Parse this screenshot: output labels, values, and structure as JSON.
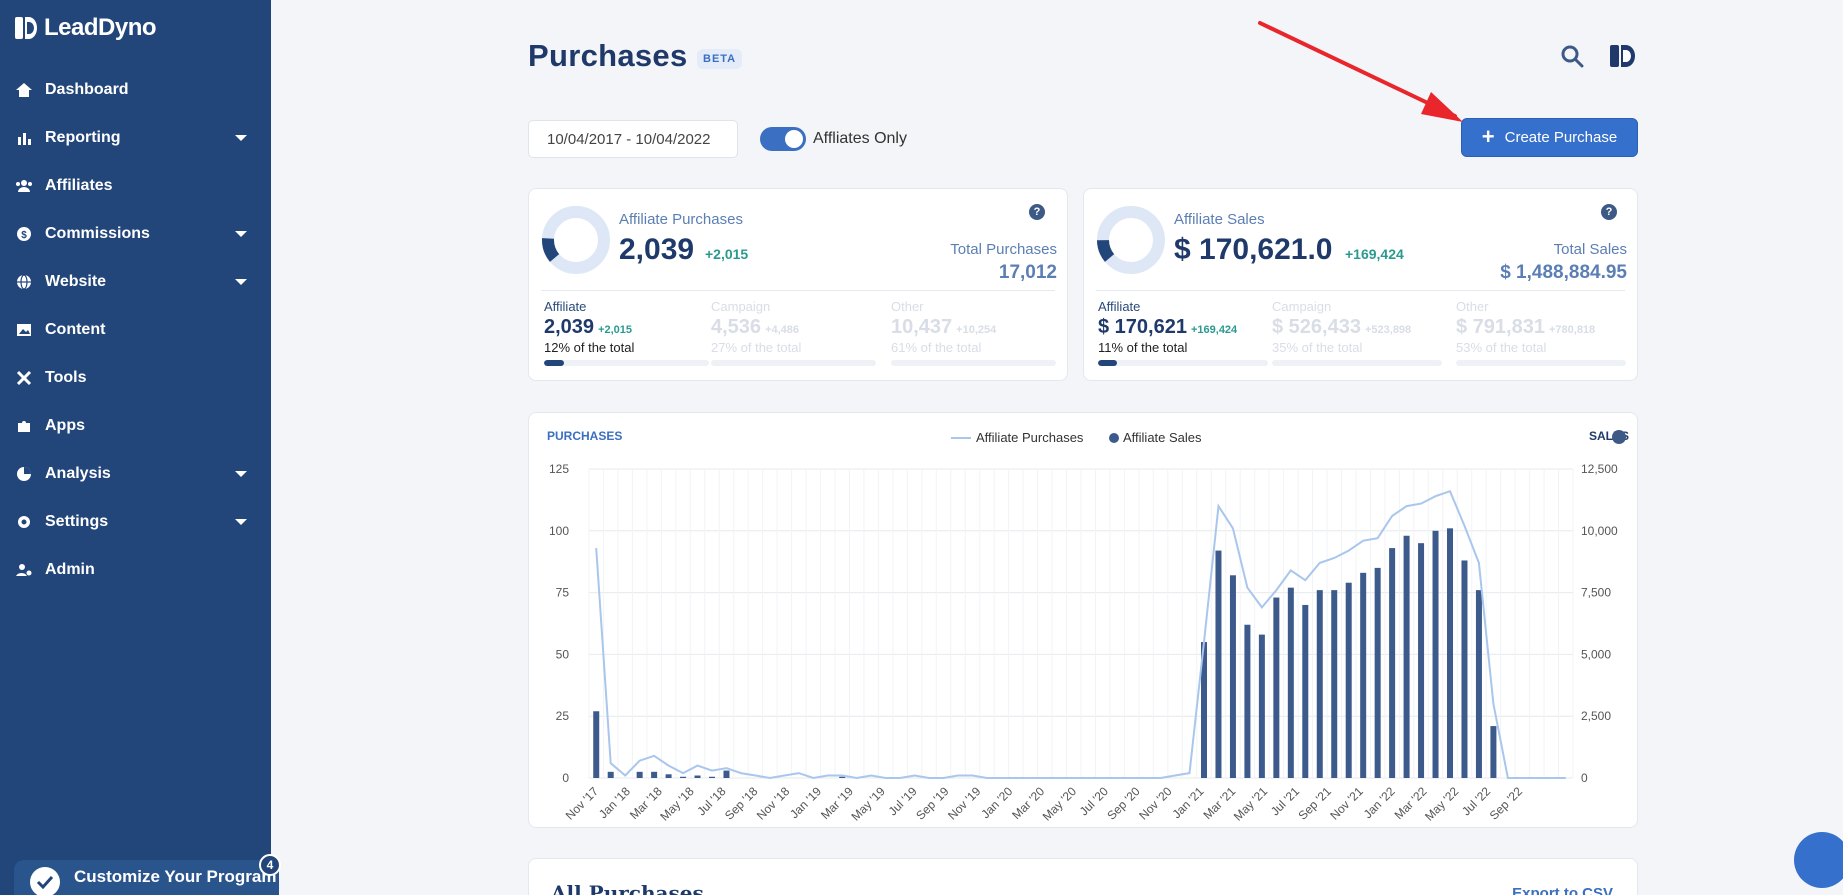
{
  "app": {
    "name": "LeadDyno"
  },
  "sidebar": {
    "items": [
      {
        "label": "Dashboard",
        "icon": "home-icon",
        "has_caret": false
      },
      {
        "label": "Reporting",
        "icon": "bar-chart-icon",
        "has_caret": true
      },
      {
        "label": "Affiliates",
        "icon": "users-icon",
        "has_caret": false
      },
      {
        "label": "Commissions",
        "icon": "money-icon",
        "has_caret": true
      },
      {
        "label": "Website",
        "icon": "globe-icon",
        "has_caret": true
      },
      {
        "label": "Content",
        "icon": "image-icon",
        "has_caret": false
      },
      {
        "label": "Tools",
        "icon": "tools-icon",
        "has_caret": false
      },
      {
        "label": "Apps",
        "icon": "puzzle-icon",
        "has_caret": false
      },
      {
        "label": "Analysis",
        "icon": "pie-chart-icon",
        "has_caret": true
      },
      {
        "label": "Settings",
        "icon": "gear-icon",
        "has_caret": true
      },
      {
        "label": "Admin",
        "icon": "user-gear-icon",
        "has_caret": false
      }
    ],
    "customize": {
      "label": "Customize Your Program",
      "badge": "4"
    }
  },
  "header": {
    "title": "Purchases",
    "badge": "BETA",
    "date_range": "10/04/2017 - 10/04/2022",
    "toggle_label": "Affliates Only",
    "toggle_on": true,
    "create_button": "Create Purchase"
  },
  "purchases_card": {
    "title": "Affiliate Purchases",
    "value": "2,039",
    "delta": "+2,015",
    "total_label": "Total Purchases",
    "total_value": "17,012",
    "donut_fraction": 0.12,
    "breakdown": [
      {
        "label": "Affiliate",
        "value": "2,039",
        "delta": "+2,015",
        "pct": "12% of the total",
        "fraction": 0.12
      },
      {
        "label": "Campaign",
        "value": "4,536",
        "delta": "+4,486",
        "pct": "27% of the total",
        "fraction": 0.27
      },
      {
        "label": "Other",
        "value": "10,437",
        "delta": "+10,254",
        "pct": "61% of the total",
        "fraction": 0.61
      }
    ]
  },
  "sales_card": {
    "title": "Affiliate Sales",
    "value": "$ 170,621.0",
    "delta": "+169,424",
    "total_label": "Total Sales",
    "total_value": "$ 1,488,884.95",
    "donut_fraction": 0.11,
    "breakdown": [
      {
        "label": "Affiliate",
        "value": "$ 170,621",
        "delta": "+169,424",
        "pct": "11% of the total",
        "fraction": 0.11
      },
      {
        "label": "Campaign",
        "value": "$ 526,433",
        "delta": "+523,898",
        "pct": "35% of the total",
        "fraction": 0.35
      },
      {
        "label": "Other",
        "value": "$ 791,831",
        "delta": "+780,818",
        "pct": "53% of the total",
        "fraction": 0.53
      }
    ]
  },
  "chart_data": {
    "type": "line",
    "ylabel": "PURCHASES",
    "y2label": "SALES",
    "ylim": [
      0,
      125
    ],
    "y2lim": [
      0,
      12500
    ],
    "yticks": [
      "125",
      "100",
      "75",
      "50",
      "25",
      "0"
    ],
    "y2ticks": [
      "12,500",
      "10,000",
      "7,500",
      "5,000",
      "2,500",
      "0"
    ],
    "legend_placement": "top-center",
    "xtick_labels": [
      "Nov '17",
      "Jan '18",
      "Mar '18",
      "May '18",
      "Jul '18",
      "Sep '18",
      "Nov '18",
      "Jan '19",
      "Mar '19",
      "May '19",
      "Jul '19",
      "Sep '19",
      "Nov '19",
      "Jan '20",
      "Mar '20",
      "May '20",
      "Jul '20",
      "Sep '20",
      "Nov '20",
      "Jan '21",
      "Mar '21",
      "May '21",
      "Jul '21",
      "Sep '21",
      "Nov '21",
      "Jan '22",
      "Mar '22",
      "May '22",
      "Jul '22",
      "Sep '22"
    ],
    "series": [
      {
        "name": "Affiliate Purchases",
        "axis": "left",
        "color": "#a9c6ec",
        "values": [
          93,
          6,
          1,
          7,
          9,
          5,
          2,
          5,
          3,
          4,
          2,
          1,
          0,
          1,
          2,
          0,
          1,
          1,
          0,
          1,
          0,
          0,
          1,
          0,
          0,
          1,
          1,
          0,
          0,
          0,
          0,
          0,
          0,
          0,
          0,
          0,
          0,
          0,
          0,
          0,
          1,
          2,
          55,
          110,
          101,
          77,
          69,
          76,
          84,
          80,
          87,
          89,
          92,
          96,
          97,
          106,
          110,
          111,
          114,
          116,
          102,
          87,
          30,
          0,
          0,
          0,
          0,
          0
        ]
      },
      {
        "name": "Affiliate Sales",
        "axis": "right",
        "color": "#3d5a8c",
        "values": [
          2700,
          250,
          0,
          250,
          250,
          150,
          50,
          100,
          50,
          300,
          0,
          0,
          0,
          0,
          0,
          0,
          0,
          50,
          0,
          0,
          0,
          0,
          0,
          0,
          0,
          0,
          0,
          0,
          0,
          0,
          0,
          0,
          0,
          0,
          0,
          0,
          0,
          0,
          0,
          0,
          0,
          0,
          5500,
          9200,
          8200,
          6200,
          5800,
          7300,
          7700,
          7000,
          7600,
          7600,
          7900,
          8300,
          8500,
          9300,
          9800,
          9500,
          10000,
          10100,
          8800,
          7600,
          2100,
          0,
          0,
          0,
          0,
          0
        ]
      }
    ]
  },
  "all_purchases": {
    "title": "All Purchases",
    "export_label": "Export to CSV"
  }
}
